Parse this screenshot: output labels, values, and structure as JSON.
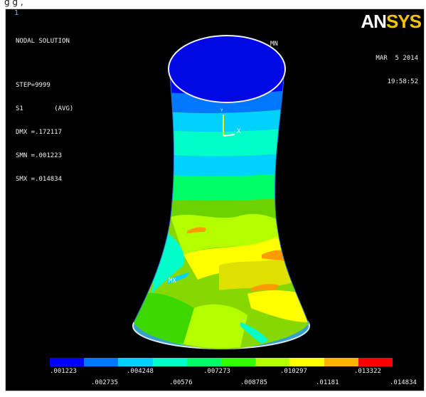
{
  "header": {
    "caption_fragment": "g                                         g             ,"
  },
  "window": {
    "number": "1"
  },
  "info": {
    "title": "NODAL SOLUTION",
    "step": "STEP=9999",
    "quantity": "S1",
    "avg": "(AVG)",
    "dmx": "DMX =.172117",
    "smn": "SMN =.001223",
    "smx": "SMX =.014834"
  },
  "timestamp": {
    "date": "MAR  5 2014",
    "time": "19:58:52"
  },
  "logo": {
    "part1": "AN",
    "part2": "SYS"
  },
  "markers": {
    "mn": "MN",
    "mx": "MX",
    "axis_x": "X",
    "axis_y": "Y"
  },
  "legend": {
    "colors": [
      "#0000ff",
      "#0077ff",
      "#00d2ff",
      "#00ffc8",
      "#00ff66",
      "#33ff00",
      "#b3ff00",
      "#ffff00",
      "#ffb300",
      "#ff0000"
    ],
    "labels_top": [
      ".001223",
      ".004248",
      ".007273",
      ".010297",
      ".013322"
    ],
    "labels_bottom": [
      ".002735",
      ".00576",
      ".008785",
      ".01181",
      ".014834"
    ]
  },
  "colors": {
    "background": "#000000",
    "logo_accent": "#f2c20a"
  }
}
